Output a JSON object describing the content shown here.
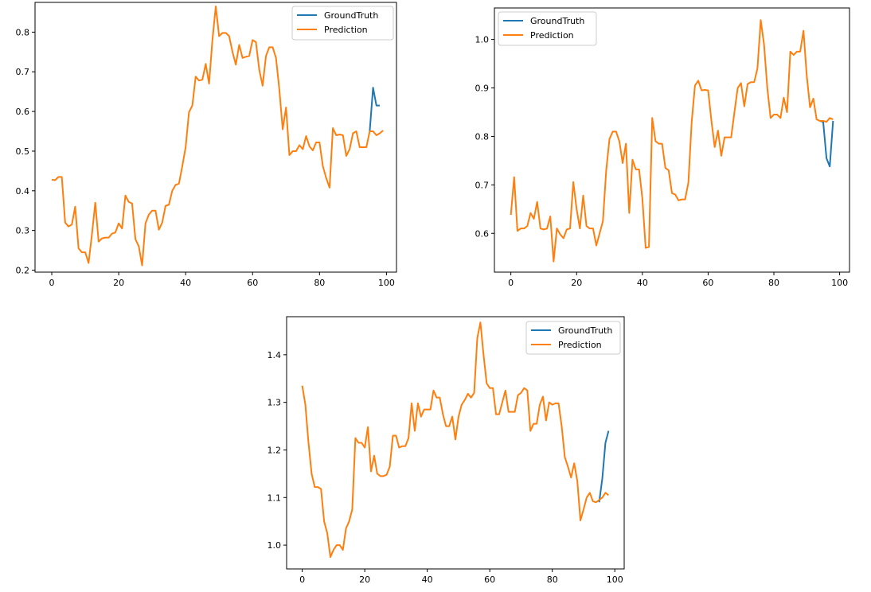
{
  "colors": {
    "ground_truth": "#1f77b4",
    "prediction": "#ff7f0e"
  },
  "chart_data": [
    {
      "type": "line",
      "title": "",
      "xlabel": "",
      "ylabel": "",
      "xlim": [
        -5.0,
        103.0
      ],
      "ylim": [
        0.195,
        0.875
      ],
      "xticks": [
        0,
        20,
        40,
        60,
        80,
        100
      ],
      "xtick_labels": [
        "0",
        "20",
        "40",
        "60",
        "80",
        "100"
      ],
      "yticks": [
        0.2,
        0.3,
        0.4,
        0.5,
        0.6,
        0.7,
        0.8
      ],
      "ytick_labels": [
        "0.2",
        "0.3",
        "0.4",
        "0.5",
        "0.6",
        "0.7",
        "0.8"
      ],
      "legend": {
        "position": "top-right",
        "entries": [
          "GroundTruth",
          "Prediction"
        ]
      },
      "series": [
        {
          "name": "GroundTruth",
          "x": [
            95,
            96,
            97,
            98
          ],
          "values": [
            0.55,
            0.66,
            0.615,
            0.615
          ]
        },
        {
          "name": "Prediction",
          "values": [
            0.428,
            0.427,
            0.435,
            0.435,
            0.32,
            0.31,
            0.315,
            0.36,
            0.255,
            0.245,
            0.245,
            0.218,
            0.29,
            0.37,
            0.272,
            0.28,
            0.282,
            0.282,
            0.292,
            0.295,
            0.318,
            0.305,
            0.388,
            0.372,
            0.368,
            0.278,
            0.26,
            0.212,
            0.318,
            0.34,
            0.35,
            0.35,
            0.302,
            0.32,
            0.362,
            0.365,
            0.4,
            0.415,
            0.418,
            0.462,
            0.51,
            0.598,
            0.615,
            0.688,
            0.678,
            0.68,
            0.72,
            0.67,
            0.78,
            0.865,
            0.79,
            0.798,
            0.798,
            0.79,
            0.75,
            0.718,
            0.768,
            0.735,
            0.738,
            0.74,
            0.78,
            0.775,
            0.705,
            0.665,
            0.74,
            0.762,
            0.762,
            0.735,
            0.655,
            0.555,
            0.61,
            0.49,
            0.5,
            0.5,
            0.515,
            0.505,
            0.538,
            0.512,
            0.502,
            0.522,
            0.522,
            0.462,
            0.432,
            0.408,
            0.558,
            0.54,
            0.542,
            0.54,
            0.488,
            0.505,
            0.545,
            0.55,
            0.51,
            0.51,
            0.51,
            0.55,
            0.55,
            0.54,
            0.545,
            0.552
          ]
        }
      ]
    },
    {
      "type": "line",
      "title": "",
      "xlabel": "",
      "ylabel": "",
      "xlim": [
        -5.0,
        103.0
      ],
      "ylim": [
        0.52,
        1.065
      ],
      "xticks": [
        0,
        20,
        40,
        60,
        80,
        100
      ],
      "xtick_labels": [
        "0",
        "20",
        "40",
        "60",
        "80",
        "100"
      ],
      "yticks": [
        0.6,
        0.7,
        0.8,
        0.9,
        1.0
      ],
      "ytick_labels": [
        "0.6",
        "0.7",
        "0.8",
        "0.9",
        "1.0"
      ],
      "legend": {
        "position": "top-left",
        "entries": [
          "GroundTruth",
          "Prediction"
        ]
      },
      "series": [
        {
          "name": "GroundTruth",
          "x": [
            94,
            95,
            96,
            97,
            98
          ],
          "values": [
            0.832,
            0.83,
            0.755,
            0.738,
            0.832
          ]
        },
        {
          "name": "Prediction",
          "values": [
            0.638,
            0.716,
            0.605,
            0.61,
            0.61,
            0.615,
            0.642,
            0.63,
            0.665,
            0.61,
            0.608,
            0.61,
            0.635,
            0.542,
            0.61,
            0.598,
            0.59,
            0.608,
            0.61,
            0.706,
            0.65,
            0.61,
            0.678,
            0.615,
            0.61,
            0.61,
            0.575,
            0.6,
            0.625,
            0.73,
            0.795,
            0.81,
            0.81,
            0.79,
            0.745,
            0.785,
            0.642,
            0.752,
            0.732,
            0.732,
            0.672,
            0.57,
            0.572,
            0.838,
            0.79,
            0.785,
            0.785,
            0.735,
            0.73,
            0.683,
            0.68,
            0.668,
            0.67,
            0.67,
            0.705,
            0.83,
            0.905,
            0.915,
            0.895,
            0.896,
            0.895,
            0.832,
            0.778,
            0.812,
            0.76,
            0.798,
            0.798,
            0.798,
            0.85,
            0.9,
            0.91,
            0.862,
            0.908,
            0.912,
            0.912,
            0.94,
            1.04,
            0.99,
            0.9,
            0.838,
            0.845,
            0.845,
            0.838,
            0.88,
            0.85,
            0.975,
            0.968,
            0.975,
            0.975,
            1.018,
            0.925,
            0.86,
            0.878,
            0.835,
            0.832,
            0.832,
            0.83,
            0.838,
            0.835
          ]
        }
      ]
    },
    {
      "type": "line",
      "title": "",
      "xlabel": "",
      "ylabel": "",
      "xlim": [
        -5.0,
        103.0
      ],
      "ylim": [
        0.95,
        1.48
      ],
      "xticks": [
        0,
        20,
        40,
        60,
        80,
        100
      ],
      "xtick_labels": [
        "0",
        "20",
        "40",
        "60",
        "80",
        "100"
      ],
      "yticks": [
        1.0,
        1.1,
        1.2,
        1.3,
        1.4
      ],
      "ytick_labels": [
        "1.0",
        "1.1",
        "1.2",
        "1.3",
        "1.4"
      ],
      "legend": {
        "position": "top-right",
        "entries": [
          "GroundTruth",
          "Prediction"
        ]
      },
      "series": [
        {
          "name": "GroundTruth",
          "x": [
            95,
            96,
            97,
            98
          ],
          "values": [
            1.09,
            1.14,
            1.215,
            1.24
          ]
        },
        {
          "name": "Prediction",
          "values": [
            1.335,
            1.295,
            1.215,
            1.15,
            1.122,
            1.122,
            1.118,
            1.05,
            1.025,
            0.975,
            0.99,
            1.0,
            1.0,
            0.99,
            1.035,
            1.05,
            1.075,
            1.225,
            1.215,
            1.215,
            1.205,
            1.248,
            1.155,
            1.188,
            1.15,
            1.145,
            1.145,
            1.148,
            1.165,
            1.23,
            1.23,
            1.205,
            1.208,
            1.208,
            1.225,
            1.298,
            1.24,
            1.298,
            1.27,
            1.285,
            1.285,
            1.285,
            1.325,
            1.31,
            1.31,
            1.275,
            1.25,
            1.25,
            1.27,
            1.222,
            1.27,
            1.295,
            1.305,
            1.318,
            1.31,
            1.32,
            1.435,
            1.468,
            1.4,
            1.34,
            1.33,
            1.33,
            1.275,
            1.275,
            1.3,
            1.325,
            1.28,
            1.28,
            1.28,
            1.315,
            1.32,
            1.33,
            1.325,
            1.24,
            1.255,
            1.255,
            1.295,
            1.312,
            1.262,
            1.3,
            1.295,
            1.298,
            1.298,
            1.25,
            1.185,
            1.165,
            1.142,
            1.172,
            1.135,
            1.052,
            1.075,
            1.1,
            1.11,
            1.092,
            1.09,
            1.095,
            1.1,
            1.11,
            1.105
          ]
        }
      ]
    }
  ]
}
